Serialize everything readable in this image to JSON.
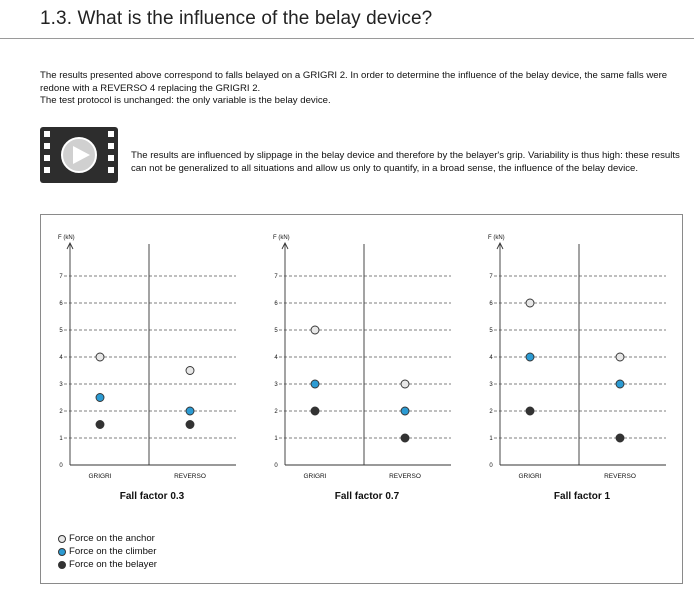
{
  "header": {
    "title": "1.3. What is the influence of the belay device?"
  },
  "intro": {
    "paragraph1": "The results presented above correspond to falls belayed on a GRIGRI 2. In order to determine the influence of the belay device, the same falls were redone with a REVERSO 4 replacing the GRIGRI 2.",
    "paragraph2": "The test protocol is unchanged: the only variable is the belay device."
  },
  "video": {
    "icon": "video-play-icon"
  },
  "note": {
    "text": "The results are influenced by slippage in the belay device and therefore by the belayer's grip. Variability is thus high: these results can not be generalized to all situations and allow us only to quantify, in a broad sense, the influence of the belay device."
  },
  "legend": {
    "anchor": "Force on the anchor",
    "climber": "Force on the climber",
    "belayer": "Force on the belayer"
  },
  "colors": {
    "anchor": "#e8e8e8",
    "climber": "#2c9bd3",
    "belayer": "#333333",
    "grid": "#555555",
    "axis": "#333333"
  },
  "chart_data": [
    {
      "type": "scatter",
      "title": "Fall factor 0.3",
      "ylabel": "F (kN)",
      "ylim": [
        0,
        7
      ],
      "yticks": [
        0,
        1,
        2,
        3,
        4,
        5,
        6,
        7
      ],
      "grid": true,
      "categories": [
        "GRIGRI",
        "REVERSO"
      ],
      "series": [
        {
          "name": "Force on the anchor",
          "values": [
            4,
            3.5
          ]
        },
        {
          "name": "Force on the climber",
          "values": [
            2.5,
            2
          ]
        },
        {
          "name": "Force on the belayer",
          "values": [
            1.5,
            1.5
          ]
        }
      ]
    },
    {
      "type": "scatter",
      "title": "Fall factor 0.7",
      "ylabel": "F (kN)",
      "ylim": [
        0,
        7
      ],
      "yticks": [
        0,
        1,
        2,
        3,
        4,
        5,
        6,
        7
      ],
      "grid": true,
      "categories": [
        "GRIGRI",
        "REVERSO"
      ],
      "series": [
        {
          "name": "Force on the anchor",
          "values": [
            5,
            3
          ]
        },
        {
          "name": "Force on the climber",
          "values": [
            3,
            2
          ]
        },
        {
          "name": "Force on the belayer",
          "values": [
            2,
            1
          ]
        }
      ]
    },
    {
      "type": "scatter",
      "title": "Fall factor 1",
      "ylabel": "F (kN)",
      "ylim": [
        0,
        7
      ],
      "yticks": [
        0,
        1,
        2,
        3,
        4,
        5,
        6,
        7
      ],
      "grid": true,
      "categories": [
        "GRIGRI",
        "REVERSO"
      ],
      "series": [
        {
          "name": "Force on the anchor",
          "values": [
            6,
            4
          ]
        },
        {
          "name": "Force on the climber",
          "values": [
            4,
            3
          ]
        },
        {
          "name": "Force on the belayer",
          "values": [
            2,
            1
          ]
        }
      ]
    }
  ]
}
